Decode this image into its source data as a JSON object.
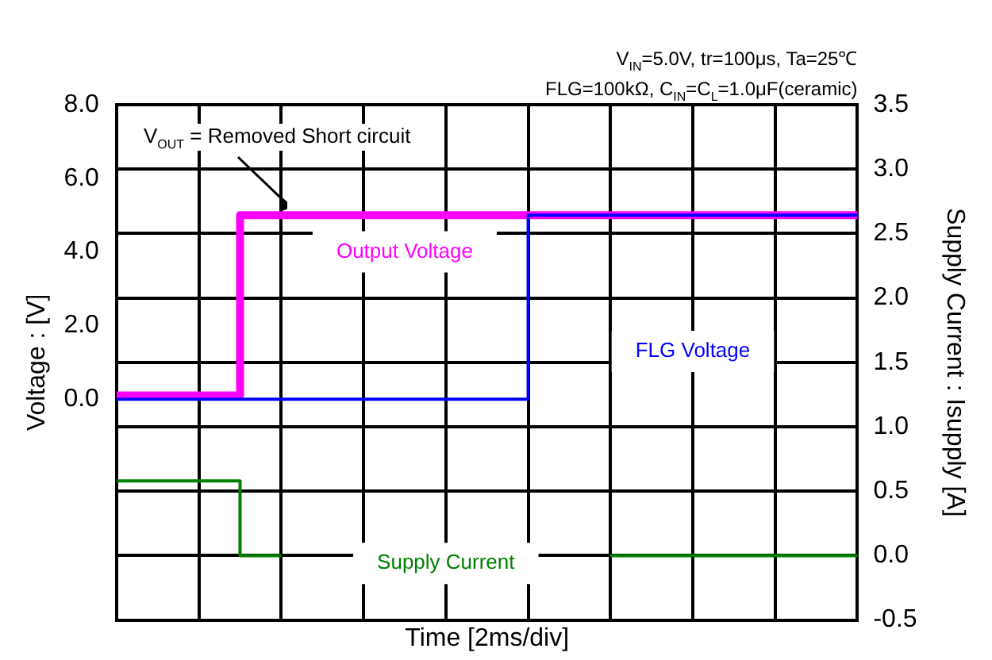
{
  "chart_data": {
    "type": "step",
    "subtitle": [
      "V$_{IN}$=5.0V, tr=100μs, Ta=25℃",
      "FLG=100kΩ, C$_{IN}$=C$_{L}$=1.0μF(ceramic)"
    ],
    "xlabel": "Time [2ms/div]",
    "ylabel": "Voltage : [V]",
    "y2label": "Supply Current : Isupply [A]",
    "annotations": [
      "V$_{OUT}$ = Removed Short circuit"
    ],
    "categories": [
      null,
      null,
      null,
      null,
      null,
      null,
      null,
      null,
      null,
      null,
      null,
      null,
      null,
      null,
      null,
      null,
      null,
      null,
      null
    ],
    "series": [
      {
        "name": "Output Voltage",
        "color": "#ff00ff",
        "values": [
          0.1,
          0.1,
          0.1,
          0.1,
          5.0,
          5.0,
          5.0,
          5.0,
          5.0,
          5.0,
          5.0,
          5.0,
          5.0,
          5.0,
          5.0,
          5.0,
          5.0,
          5.0,
          5.0
        ]
      },
      {
        "name": "FLG Voltage",
        "color": "#0000ff",
        "values": [
          0,
          0,
          0,
          0,
          0,
          0,
          0,
          0,
          0,
          0,
          0,
          5.0,
          5.0,
          5.0,
          5.0,
          5.0,
          5.0,
          5.0,
          5.0
        ]
      },
      {
        "name": "Supply Current",
        "color": "#008000",
        "axis": "y2",
        "values": [
          0.58,
          0.58,
          0.58,
          0.58,
          0.0,
          null,
          null,
          null,
          null,
          null,
          null,
          null,
          0.0,
          0.0,
          0.0,
          0.0,
          0.0,
          0.0,
          0.0
        ]
      }
    ],
    "ylim": [
      -6,
      8
    ],
    "yticks": [
      {
        "value": 0,
        "label": "0.0"
      },
      {
        "value": 2,
        "label": "2.0"
      },
      {
        "value": 4,
        "label": "4.0"
      },
      {
        "value": 6,
        "label": "6.0"
      },
      {
        "value": 8,
        "label": "8.0"
      }
    ],
    "y2lim": [
      -0.5,
      3.5
    ],
    "y2ticks": [
      {
        "value": -0.5,
        "label": "-0.5"
      },
      {
        "value": 0,
        "label": "0.0"
      },
      {
        "value": 0.5,
        "label": "0.5"
      },
      {
        "value": 1,
        "label": "1.0"
      },
      {
        "value": 1.5,
        "label": "1.5"
      },
      {
        "value": 2,
        "label": "2.0"
      },
      {
        "value": 2.5,
        "label": "2.5"
      },
      {
        "value": 3,
        "label": "3.0"
      },
      {
        "value": 3.5,
        "label": "3.5"
      }
    ],
    "tick_labels": "y",
    "grid": true,
    "legend": false,
    "line_style": "solid",
    "marker": "none"
  }
}
